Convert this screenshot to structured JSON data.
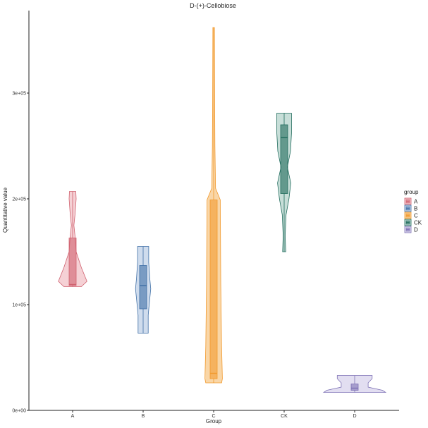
{
  "chart_data": {
    "type": "violin",
    "title": "D-(+)-Cellobiose",
    "xlabel": "Group",
    "ylabel": "Quantitative value",
    "categories": [
      "A",
      "B",
      "C",
      "CK",
      "D"
    ],
    "ylim": [
      0,
      405000
    ],
    "yticks": [
      {
        "value": 0,
        "label": "0e+00"
      },
      {
        "value": 100000,
        "label": "1e+05"
      },
      {
        "value": 200000,
        "label": "2e+05"
      },
      {
        "value": 300000,
        "label": "3e+05"
      }
    ],
    "legend": {
      "title": "group",
      "position": "right",
      "entries": [
        "A",
        "B",
        "C",
        "CK",
        "D"
      ]
    },
    "grid": false,
    "series": [
      {
        "group": "A",
        "color": "#D0616F",
        "fill": "#F3C9CE",
        "min": 117000,
        "max": 207000,
        "q1": 118000,
        "median": 119000,
        "q3": 163000,
        "profile": [
          [
            117000,
            0.55
          ],
          [
            122000,
            0.9
          ],
          [
            135000,
            0.55
          ],
          [
            150000,
            0.22
          ],
          [
            165000,
            0.15
          ],
          [
            175000,
            0.08
          ],
          [
            185000,
            0.15
          ],
          [
            200000,
            0.22
          ],
          [
            207000,
            0.2
          ]
        ]
      },
      {
        "group": "B",
        "color": "#3F6FA6",
        "fill": "#C7D6EA",
        "min": 73000,
        "max": 155000,
        "q1": 96000,
        "median": 118000,
        "q3": 137000,
        "profile": [
          [
            73000,
            0.32
          ],
          [
            90000,
            0.32
          ],
          [
            100000,
            0.38
          ],
          [
            115000,
            0.48
          ],
          [
            125000,
            0.42
          ],
          [
            140000,
            0.35
          ],
          [
            155000,
            0.35
          ]
        ]
      },
      {
        "group": "C",
        "color": "#F29A2E",
        "fill": "#F8CF98",
        "min": 26000,
        "max": 362000,
        "q1": 30000,
        "median": 35000,
        "q3": 199000,
        "profile": [
          [
            26000,
            0.5
          ],
          [
            30000,
            0.55
          ],
          [
            60000,
            0.5
          ],
          [
            120000,
            0.45
          ],
          [
            199000,
            0.42
          ],
          [
            210000,
            0.12
          ],
          [
            250000,
            0.08
          ],
          [
            300000,
            0.06
          ],
          [
            362000,
            0.05
          ]
        ]
      },
      {
        "group": "CK",
        "color": "#1F6B5C",
        "fill": "#BDD8D1",
        "min": 150000,
        "max": 281000,
        "q1": 205000,
        "median": 258000,
        "q3": 270000,
        "profile": [
          [
            150000,
            0.1
          ],
          [
            165000,
            0.06
          ],
          [
            185000,
            0.12
          ],
          [
            200000,
            0.3
          ],
          [
            215000,
            0.42
          ],
          [
            230000,
            0.2
          ],
          [
            245000,
            0.4
          ],
          [
            262000,
            0.46
          ],
          [
            281000,
            0.46
          ]
        ]
      },
      {
        "group": "D",
        "color": "#7E72B5",
        "fill": "#DDD8EE",
        "min": 17000,
        "max": 33000,
        "q1": 19000,
        "median": 21000,
        "q3": 25000,
        "profile": [
          [
            17000,
            1.95
          ],
          [
            19000,
            1.75
          ],
          [
            22000,
            0.85
          ],
          [
            26000,
            0.85
          ],
          [
            30000,
            1.1
          ],
          [
            33000,
            1.1
          ]
        ]
      }
    ]
  }
}
